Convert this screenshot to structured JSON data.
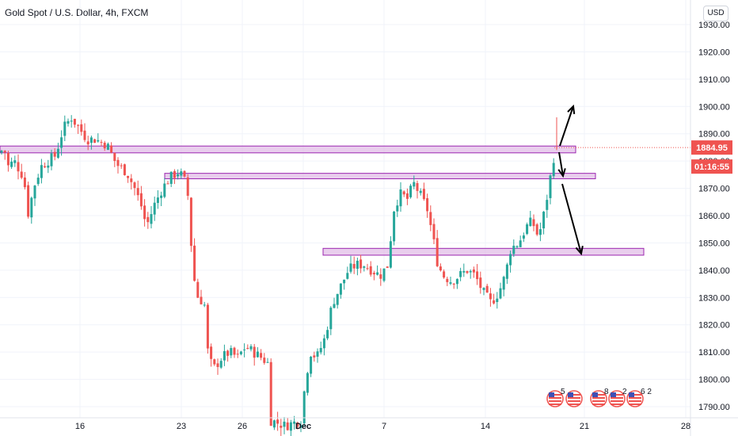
{
  "header": {
    "title": "Gold Spot / U.S. Dollar, 4h, FXCM",
    "currency_button": "USD"
  },
  "colors": {
    "up": "#26a69a",
    "down": "#ef5350",
    "zone_fill": "#e1bee7",
    "zone_stroke": "#9c27b0",
    "price_badge": "#ef5350",
    "grid": "#f0f3fa"
  },
  "chart_data": {
    "type": "candlestick",
    "ylim": [
      1788,
      1934
    ],
    "y_ticks": [
      1790,
      1800,
      1810,
      1820,
      1830,
      1840,
      1850,
      1860,
      1870,
      1880,
      1890,
      1900,
      1910,
      1920,
      1930
    ],
    "y_tick_labels": [
      "1790.00",
      "1800.00",
      "1810.00",
      "1820.00",
      "1830.00",
      "1840.00",
      "1850.00",
      "1860.00",
      "1870.00",
      "1880.00",
      "1890.00",
      "1900.00",
      "1910.00",
      "1920.00",
      "1930.00"
    ],
    "x_ticks": [
      "16",
      "23",
      "26",
      "Dec",
      "7",
      "14",
      "21",
      "28"
    ],
    "last_price": 1884.95,
    "last_price_label": "1884.95",
    "countdown_label": "01:16:55",
    "zones": [
      {
        "low": 1883,
        "high": 1885.5
      },
      {
        "low": 1873.5,
        "high": 1875.5
      },
      {
        "low": 1845.5,
        "high": 1848
      }
    ],
    "keypoints": [
      [
        0,
        1883
      ],
      [
        5,
        1885
      ],
      [
        10,
        1878
      ],
      [
        18,
        1880
      ],
      [
        30,
        1874
      ],
      [
        36,
        1860
      ],
      [
        42,
        1870
      ],
      [
        52,
        1878
      ],
      [
        60,
        1880
      ],
      [
        70,
        1882
      ],
      [
        80,
        1892
      ],
      [
        90,
        1896
      ],
      [
        100,
        1892
      ],
      [
        110,
        1888
      ],
      [
        120,
        1888
      ],
      [
        135,
        1886
      ],
      [
        145,
        1880
      ],
      [
        150,
        1878
      ],
      [
        160,
        1876
      ],
      [
        170,
        1870
      ],
      [
        178,
        1864
      ],
      [
        185,
        1856
      ],
      [
        195,
        1864
      ],
      [
        205,
        1870
      ],
      [
        215,
        1874
      ],
      [
        225,
        1876
      ],
      [
        232,
        1874
      ],
      [
        237,
        1868
      ],
      [
        240,
        1858
      ],
      [
        243,
        1840
      ],
      [
        250,
        1830
      ],
      [
        258,
        1828
      ],
      [
        263,
        1808
      ],
      [
        270,
        1804
      ],
      [
        280,
        1808
      ],
      [
        290,
        1810
      ],
      [
        300,
        1808
      ],
      [
        310,
        1812
      ],
      [
        320,
        1810
      ],
      [
        330,
        1808
      ],
      [
        338,
        1806
      ],
      [
        342,
        1785
      ],
      [
        360,
        1783
      ],
      [
        380,
        1785
      ],
      [
        386,
        1800
      ],
      [
        392,
        1810
      ],
      [
        400,
        1808
      ],
      [
        410,
        1815
      ],
      [
        420,
        1828
      ],
      [
        430,
        1834
      ],
      [
        440,
        1840
      ],
      [
        450,
        1842
      ],
      [
        460,
        1842
      ],
      [
        470,
        1840
      ],
      [
        480,
        1838
      ],
      [
        490,
        1842
      ],
      [
        497,
        1862
      ],
      [
        505,
        1868
      ],
      [
        515,
        1866
      ],
      [
        522,
        1872
      ],
      [
        530,
        1868
      ],
      [
        540,
        1862
      ],
      [
        548,
        1850
      ],
      [
        553,
        1842
      ],
      [
        560,
        1838
      ],
      [
        570,
        1836
      ],
      [
        580,
        1838
      ],
      [
        590,
        1840
      ],
      [
        600,
        1838
      ],
      [
        610,
        1832
      ],
      [
        620,
        1828
      ],
      [
        630,
        1832
      ],
      [
        638,
        1838
      ],
      [
        645,
        1848
      ],
      [
        655,
        1850
      ],
      [
        665,
        1856
      ],
      [
        672,
        1858
      ],
      [
        680,
        1852
      ],
      [
        688,
        1862
      ],
      [
        694,
        1872
      ],
      [
        698,
        1880
      ],
      [
        703,
        1885
      ]
    ],
    "ohlc_note": "approximate 4h OHLC series; recreated from visual"
  },
  "annotations": {
    "arrows_count": 3
  },
  "events": {
    "items": [
      {
        "flag": "US",
        "count": "5"
      },
      {
        "flag": "US",
        "count": ""
      },
      {
        "flag": "US",
        "count": "8"
      },
      {
        "flag": "US",
        "count": "2"
      },
      {
        "flag": "US",
        "count": "6 2"
      }
    ]
  }
}
